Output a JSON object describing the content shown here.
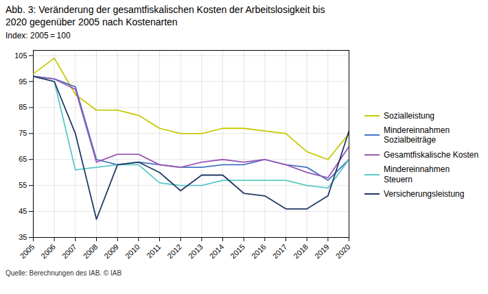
{
  "chart_data": {
    "type": "line",
    "title": "Abb. 3: Veränderung der gesamtfiskalischen Kosten der Arbeitslosigkeit bis\n2020 gegenüber 2005 nach Kostenarten",
    "subtitle": "Index: 2005 = 100",
    "source": "Quelle: Berechnungen des IAB. © IAB",
    "x": [
      2005,
      2006,
      2007,
      2008,
      2009,
      2010,
      2011,
      2012,
      2013,
      2014,
      2015,
      2016,
      2017,
      2018,
      2019,
      2020
    ],
    "xlim": [
      2005,
      2020
    ],
    "xticks": [
      2005,
      2006,
      2007,
      2008,
      2009,
      2010,
      2011,
      2012,
      2013,
      2014,
      2015,
      2016,
      2017,
      2018,
      2019,
      2020
    ],
    "ylim": [
      35,
      107
    ],
    "yticks": [
      35,
      45,
      55,
      65,
      75,
      85,
      95,
      105
    ],
    "grid": true,
    "legend": "right",
    "series": [
      {
        "name": "Sozialleistung",
        "color": "#c8c800",
        "values": [
          98,
          104,
          90,
          84,
          84,
          82,
          77,
          75,
          75,
          77,
          77,
          76,
          75,
          68,
          65,
          75
        ]
      },
      {
        "name": "Mindereinnahmen\nSozialbeiträge",
        "color": "#4472c4",
        "values": [
          97,
          96,
          93,
          65,
          63,
          64,
          63,
          62,
          62,
          63,
          63,
          65,
          63,
          62,
          57,
          65
        ]
      },
      {
        "name": "Gesamtfiskalische Kosten",
        "color": "#9b59b6",
        "values": [
          97,
          96,
          92,
          64,
          67,
          67,
          63,
          62,
          64,
          65,
          64,
          65,
          63,
          60,
          58,
          70
        ]
      },
      {
        "name": "Mindereinnahmen\nSteuern",
        "color": "#5bc8c8",
        "values": [
          97,
          95,
          61,
          62,
          63,
          63,
          56,
          55,
          55,
          57,
          57,
          57,
          57,
          55,
          54,
          65
        ]
      },
      {
        "name": "Versicherungsleistung",
        "color": "#1f3864",
        "values": [
          97,
          95,
          75,
          42,
          63,
          64,
          60,
          53,
          59,
          59,
          52,
          51,
          46,
          46,
          51,
          76
        ]
      }
    ]
  }
}
